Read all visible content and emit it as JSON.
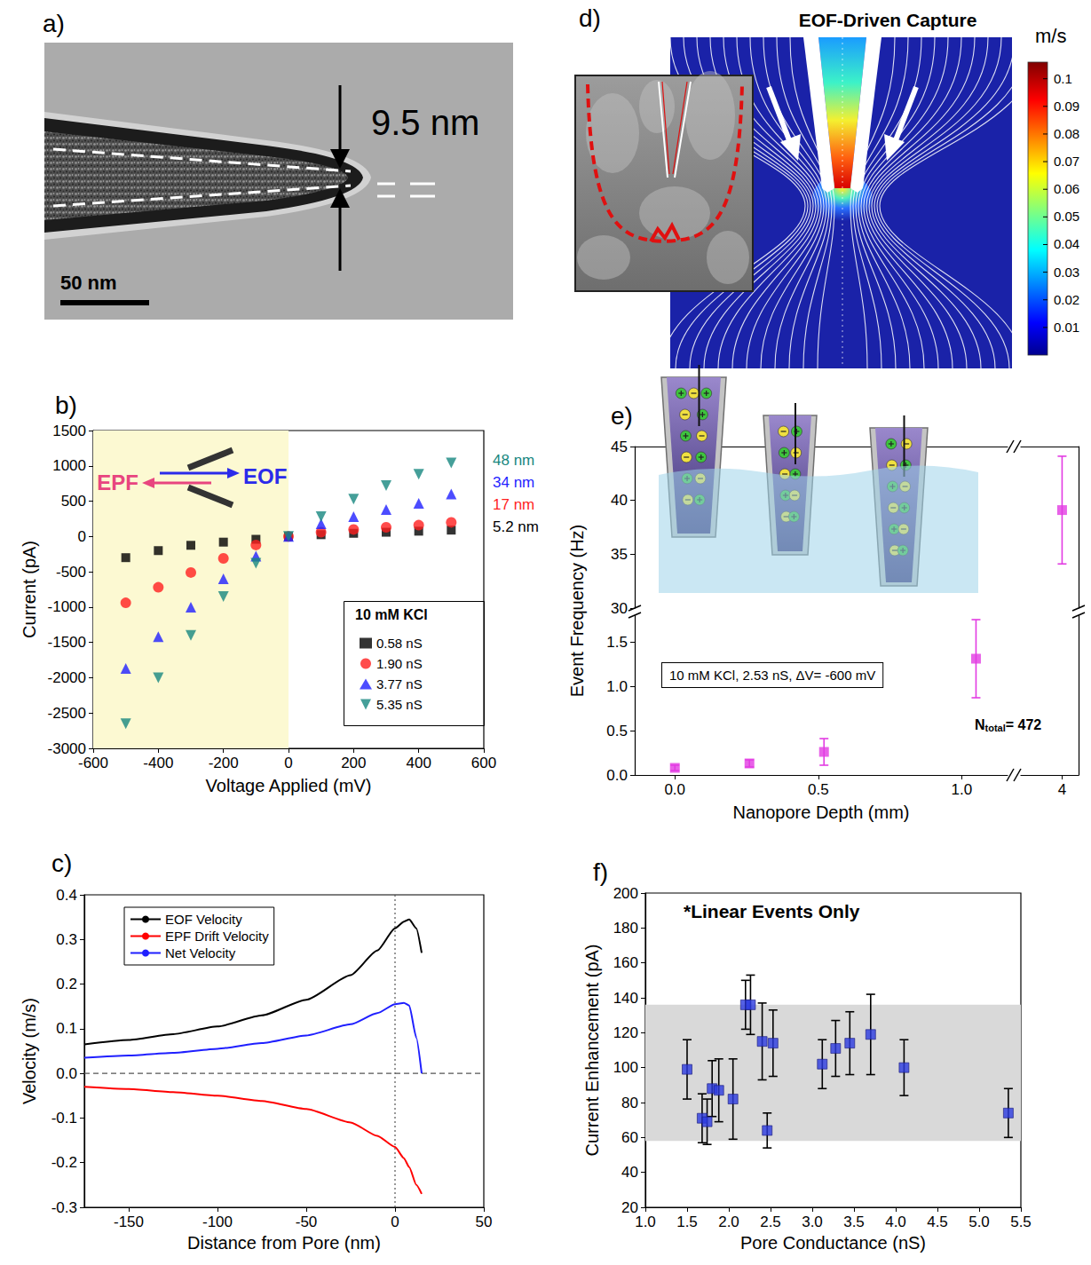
{
  "micrograph": {
    "panel": "a)",
    "dimension_label": "9.5 nm",
    "scale_bar": "50 nm"
  },
  "simulation": {
    "panel": "d)",
    "title": "EOF-Driven Capture",
    "colorbar": {
      "unit": "m/s",
      "range": [
        0,
        0.106
      ],
      "ticks": [
        0.01,
        0.02,
        0.03,
        0.04,
        0.05,
        0.06,
        0.07,
        0.08,
        0.09,
        0.1
      ]
    }
  },
  "chart_data": [
    {
      "panel": "b)",
      "type": "scatter",
      "xlabel": "Voltage Applied (mV)",
      "ylabel": "Current (pA)",
      "xlim": [
        -600,
        600
      ],
      "xticks": [
        -600,
        -400,
        -200,
        0,
        200,
        400,
        600
      ],
      "ylim": [
        -3000,
        1500
      ],
      "yticks": [
        -3000,
        -2500,
        -2000,
        -1500,
        -1000,
        -500,
        0,
        500,
        1000,
        1500
      ],
      "grid": false,
      "legend": "lower right",
      "legend_title": "10 mM KCl",
      "shaded_range": {
        "axis": "x",
        "range": [
          -600,
          0
        ]
      },
      "inset_labels": [
        {
          "text": "EPF",
          "color": "#e8457f"
        },
        {
          "text": "EOF",
          "color": "#2b2bea"
        }
      ],
      "x": [
        -500,
        -400,
        -300,
        -200,
        -100,
        0,
        100,
        200,
        300,
        400,
        500
      ],
      "series": [
        {
          "name": "0.58 nS",
          "color": "#000000",
          "marker": "square",
          "end_label": "5.2 nm",
          "values": [
            -300,
            -200,
            -125,
            -80,
            -40,
            0,
            25,
            45,
            60,
            75,
            90
          ]
        },
        {
          "name": "1.90 nS",
          "color": "#ff1f1f",
          "marker": "circle",
          "end_label": "17 nm",
          "values": [
            -940,
            -720,
            -510,
            -310,
            -120,
            0,
            60,
            100,
            130,
            160,
            200
          ]
        },
        {
          "name": "3.77 nS",
          "color": "#1f1fff",
          "marker": "triangle",
          "end_label": "34 nm",
          "values": [
            -1870,
            -1420,
            -1000,
            -600,
            -280,
            0,
            180,
            280,
            380,
            470,
            600
          ]
        },
        {
          "name": "5.35 nS",
          "color": "#17877f",
          "marker": "triangle-down",
          "end_label": "48 nm",
          "values": [
            -2650,
            -2000,
            -1400,
            -850,
            -380,
            0,
            280,
            530,
            720,
            880,
            1040
          ]
        }
      ]
    },
    {
      "panel": "c)",
      "type": "line",
      "xlabel": "Distance from Pore (nm)",
      "ylabel": "Velocity (m/s)",
      "xlim": [
        -175,
        50
      ],
      "xticks": [
        -150,
        -100,
        -50,
        0,
        50
      ],
      "ylim": [
        -0.3,
        0.4
      ],
      "yticks": [
        -0.3,
        -0.2,
        -0.1,
        {
          "value": 0,
          "label": "0.0"
        },
        0.1,
        0.2,
        0.3,
        0.4
      ],
      "grid": false,
      "legend": "upper left",
      "reference_lines": {
        "x": [
          0
        ],
        "y": [
          0
        ]
      },
      "x": [
        -175,
        -150,
        -125,
        -100,
        -75,
        -50,
        -25,
        -10,
        0,
        5,
        8,
        12,
        15
      ],
      "series": [
        {
          "name": "EOF Velocity",
          "color": "#000000",
          "line_style": "solid",
          "values": [
            0.065,
            0.075,
            0.088,
            0.105,
            0.13,
            0.165,
            0.22,
            0.275,
            0.325,
            0.34,
            0.345,
            0.325,
            0.27
          ]
        },
        {
          "name": "EPF Drift Velocity",
          "color": "#ff0000",
          "line_style": "solid",
          "values": [
            -0.03,
            -0.035,
            -0.042,
            -0.05,
            -0.062,
            -0.08,
            -0.11,
            -0.14,
            -0.165,
            -0.19,
            -0.21,
            -0.25,
            -0.27
          ]
        },
        {
          "name": "Net Velocity",
          "color": "#1f1fff",
          "line_style": "solid",
          "values": [
            0.035,
            0.04,
            0.046,
            0.055,
            0.068,
            0.085,
            0.11,
            0.135,
            0.155,
            0.158,
            0.152,
            0.08,
            0.0
          ]
        }
      ]
    },
    {
      "panel": "e)",
      "type": "scatter",
      "xlabel": "Nanopore Depth (mm)",
      "ylabel": "Event Frequency (Hz)",
      "xlim": [
        [
          -0.14,
          1.16
        ],
        [
          3.75,
          4.1
        ]
      ],
      "xticks": [
        [
          {
            "value": 0,
            "label": "0.0"
          },
          0.5,
          {
            "value": 1,
            "label": "1.0"
          }
        ],
        [
          4
        ]
      ],
      "ylim": [
        [
          0,
          1.8
        ],
        [
          30,
          45
        ]
      ],
      "yticks": [
        [
          {
            "value": 0,
            "label": "0.0"
          },
          0.5,
          {
            "value": 1,
            "label": "1.0"
          },
          1.5
        ],
        [
          30,
          35,
          40,
          45
        ]
      ],
      "grid": false,
      "color": "#e23be2",
      "marker": "square",
      "annotations": [
        "10 mM KCl, 2.53 nS, ΔV= -600 mV",
        {
          "text": "N",
          "subscript": "total",
          "suffix": "= 472"
        }
      ],
      "x": [
        0,
        0.26,
        0.52,
        1.05,
        4
      ],
      "values": [
        0.08,
        0.13,
        0.26,
        1.31,
        39.1
      ],
      "errors": [
        0.03,
        0.04,
        0.15,
        0.44,
        5.0
      ]
    },
    {
      "panel": "f)",
      "type": "scatter",
      "title": "*Linear Events Only",
      "xlabel": "Pore Conductance (nS)",
      "ylabel": "Current Enhancement (pA)",
      "xlim": [
        1,
        5.5
      ],
      "xticks": [
        {
          "value": 1,
          "label": "1.0"
        },
        1.5,
        {
          "value": 2,
          "label": "2.0"
        },
        2.5,
        {
          "value": 3,
          "label": "3.0"
        },
        3.5,
        {
          "value": 4,
          "label": "4.0"
        },
        4.5,
        {
          "value": 5,
          "label": "5.0"
        },
        5.5
      ],
      "ylim": [
        20,
        200
      ],
      "yticks": [
        20,
        40,
        60,
        80,
        100,
        120,
        140,
        160,
        180,
        200
      ],
      "grid": false,
      "color": "#2b3ae0",
      "marker": "square",
      "shaded_range": {
        "axis": "y",
        "range": [
          58,
          136
        ]
      },
      "x": [
        1.5,
        1.68,
        1.74,
        1.8,
        1.88,
        2.05,
        2.2,
        2.26,
        2.4,
        2.46,
        2.53,
        3.12,
        3.28,
        3.45,
        3.7,
        4.1,
        5.35
      ],
      "values": [
        99,
        71,
        69,
        88,
        87,
        82,
        136,
        136,
        115,
        64,
        114,
        102,
        111,
        114,
        119,
        100,
        74
      ],
      "errors": [
        17,
        14,
        13,
        16,
        18,
        23,
        14,
        17,
        22,
        10,
        19,
        14,
        16,
        18,
        23,
        16,
        14
      ]
    }
  ]
}
